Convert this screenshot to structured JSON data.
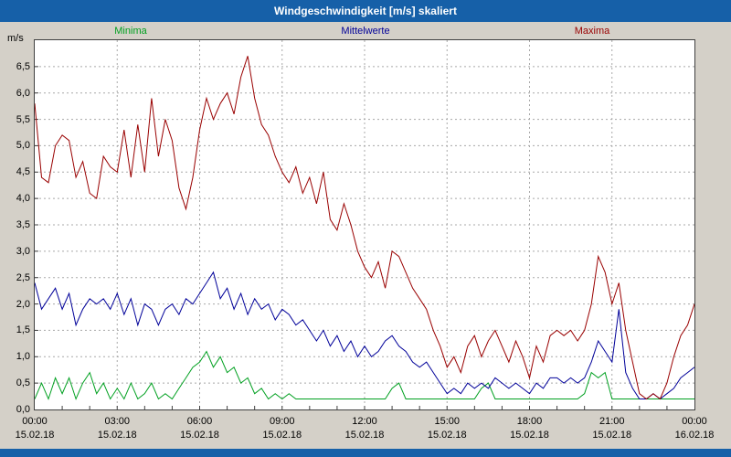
{
  "window": {
    "title": "Windgeschwindigkeit [m/s] skaliert"
  },
  "colors": {
    "titlebar": "#1660a8",
    "background": "#d4d0c8",
    "plot_background": "#ffffff",
    "plot_border": "#404040",
    "grid": "#a8a8a8",
    "minima": "#00a020",
    "mittelwerte": "#000099",
    "maxima": "#990000"
  },
  "chart_data": {
    "type": "line",
    "title": "Windgeschwindigkeit [m/s] skaliert",
    "ylabel": "m/s",
    "ylim": [
      0,
      7
    ],
    "y_tick_values": [
      0,
      0.5,
      1,
      1.5,
      2,
      2.5,
      3,
      3.5,
      4,
      4.5,
      5,
      5.5,
      6,
      6.5
    ],
    "y_tick_labels": [
      "0,0",
      "0,5",
      "1,0",
      "1,5",
      "2,0",
      "2,5",
      "3,0",
      "3,5",
      "4,0",
      "4,5",
      "5,0",
      "5,5",
      "6,0",
      "6,5"
    ],
    "x_range": "15.02.18 00:00 to 16.02.18 00:00, 15-minute interval",
    "x_tick_times": [
      "00:00",
      "03:00",
      "06:00",
      "09:00",
      "12:00",
      "15:00",
      "18:00",
      "21:00",
      "00:00"
    ],
    "x_tick_dates": [
      "15.02.18",
      "15.02.18",
      "15.02.18",
      "15.02.18",
      "15.02.18",
      "15.02.18",
      "15.02.18",
      "15.02.18",
      "16.02.18"
    ],
    "grid": true,
    "legend_position": "top",
    "series": [
      {
        "name": "Minima",
        "color": "#00a020",
        "values": [
          0.2,
          0.5,
          0.2,
          0.6,
          0.3,
          0.6,
          0.2,
          0.5,
          0.7,
          0.3,
          0.5,
          0.2,
          0.4,
          0.2,
          0.5,
          0.2,
          0.3,
          0.5,
          0.2,
          0.3,
          0.2,
          0.4,
          0.6,
          0.8,
          0.9,
          1.1,
          0.8,
          1.0,
          0.7,
          0.8,
          0.5,
          0.6,
          0.3,
          0.4,
          0.2,
          0.3,
          0.2,
          0.3,
          0.2,
          0.2,
          0.2,
          0.2,
          0.2,
          0.2,
          0.2,
          0.2,
          0.2,
          0.2,
          0.2,
          0.2,
          0.2,
          0.2,
          0.4,
          0.5,
          0.2,
          0.2,
          0.2,
          0.2,
          0.2,
          0.2,
          0.2,
          0.2,
          0.2,
          0.2,
          0.2,
          0.4,
          0.5,
          0.2,
          0.2,
          0.2,
          0.2,
          0.2,
          0.2,
          0.2,
          0.2,
          0.2,
          0.2,
          0.2,
          0.2,
          0.2,
          0.3,
          0.7,
          0.6,
          0.7,
          0.2,
          0.2,
          0.2,
          0.2,
          0.2,
          0.2,
          0.2,
          0.2,
          0.2,
          0.2,
          0.2,
          0.2,
          0.2
        ]
      },
      {
        "name": "Mittelwerte",
        "color": "#000099",
        "values": [
          2.4,
          1.9,
          2.1,
          2.3,
          1.9,
          2.2,
          1.6,
          1.9,
          2.1,
          2.0,
          2.1,
          1.9,
          2.2,
          1.8,
          2.1,
          1.6,
          2.0,
          1.9,
          1.6,
          1.9,
          2.0,
          1.8,
          2.1,
          2.0,
          2.2,
          2.4,
          2.6,
          2.1,
          2.3,
          1.9,
          2.2,
          1.8,
          2.1,
          1.9,
          2.0,
          1.7,
          1.9,
          1.8,
          1.6,
          1.7,
          1.5,
          1.3,
          1.5,
          1.2,
          1.4,
          1.1,
          1.3,
          1.0,
          1.2,
          1.0,
          1.1,
          1.3,
          1.4,
          1.2,
          1.1,
          0.9,
          0.8,
          0.9,
          0.7,
          0.5,
          0.3,
          0.4,
          0.3,
          0.5,
          0.4,
          0.5,
          0.4,
          0.6,
          0.5,
          0.4,
          0.5,
          0.4,
          0.3,
          0.5,
          0.4,
          0.6,
          0.6,
          0.5,
          0.6,
          0.5,
          0.6,
          0.9,
          1.3,
          1.1,
          0.9,
          1.9,
          0.7,
          0.4,
          0.2,
          0.2,
          0.3,
          0.2,
          0.3,
          0.4,
          0.6,
          0.7,
          0.8
        ]
      },
      {
        "name": "Maxima",
        "color": "#990000",
        "values": [
          5.8,
          4.4,
          4.3,
          5.0,
          5.2,
          5.1,
          4.4,
          4.7,
          4.1,
          4.0,
          4.8,
          4.6,
          4.5,
          5.3,
          4.4,
          5.4,
          4.5,
          5.9,
          4.8,
          5.5,
          5.1,
          4.2,
          3.8,
          4.4,
          5.3,
          5.9,
          5.5,
          5.8,
          6.0,
          5.6,
          6.3,
          6.7,
          5.9,
          5.4,
          5.2,
          4.8,
          4.5,
          4.3,
          4.6,
          4.1,
          4.4,
          3.9,
          4.5,
          3.6,
          3.4,
          3.9,
          3.5,
          3.0,
          2.7,
          2.5,
          2.8,
          2.3,
          3.0,
          2.9,
          2.6,
          2.3,
          2.1,
          1.9,
          1.5,
          1.2,
          0.8,
          1.0,
          0.7,
          1.2,
          1.4,
          1.0,
          1.3,
          1.5,
          1.2,
          0.9,
          1.3,
          1.0,
          0.6,
          1.2,
          0.9,
          1.4,
          1.5,
          1.4,
          1.5,
          1.3,
          1.5,
          2.0,
          2.9,
          2.6,
          2.0,
          2.4,
          1.5,
          0.9,
          0.3,
          0.2,
          0.3,
          0.2,
          0.5,
          1.0,
          1.4,
          1.6,
          2.0
        ]
      }
    ]
  }
}
